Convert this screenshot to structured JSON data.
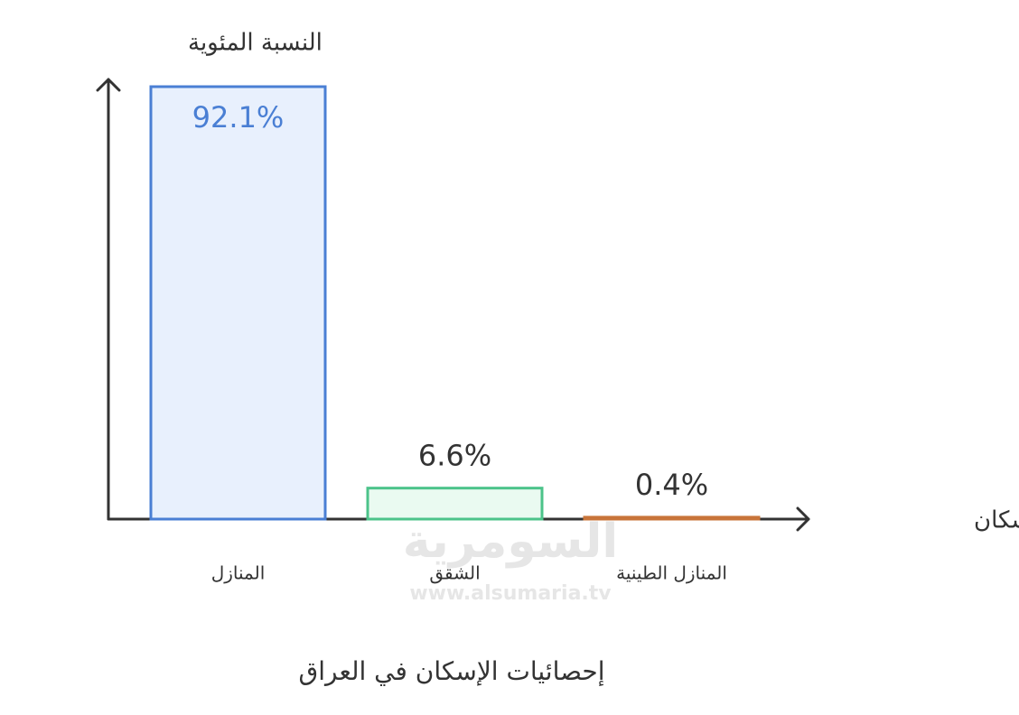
{
  "chart_data": {
    "type": "bar",
    "title": "إحصائيات الإسكان في العراق",
    "y_label": "النسبة المئوية",
    "x_label": "فئة الإسكان",
    "categories": [
      "المنازل",
      "الشقق",
      "المنازل الطينية"
    ],
    "values": [
      92.1,
      6.6,
      0.4
    ],
    "value_labels": [
      "92.1%",
      "6.6%",
      "0.4%"
    ],
    "colors": [
      "#4a7fd4",
      "#4cc38a",
      "#c8743a"
    ],
    "fills": [
      "#e8f0fd",
      "#eafaf1",
      "#f8ede4"
    ],
    "ylim": [
      0,
      92.1
    ],
    "watermark": [
      "السومرية",
      "www.alsumaria.tv"
    ]
  }
}
